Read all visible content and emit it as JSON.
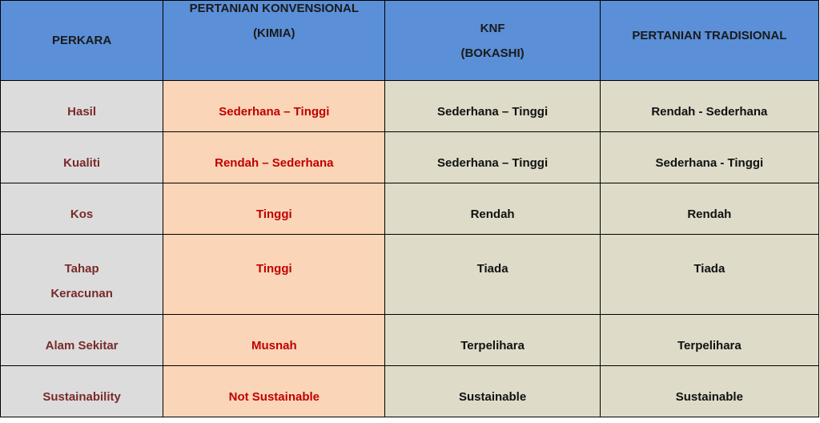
{
  "headers": {
    "perkara": "PERKARA",
    "konv_line1": "PERTANIAN KONVENSIONAL",
    "konv_line2": "(KIMIA)",
    "knf_line1": "KNF",
    "knf_line2": "(BOKASHI)",
    "trad": "PERTANIAN TRADISIONAL"
  },
  "rows": [
    {
      "perkara": "Hasil",
      "konv": "Sederhana – Tinggi",
      "knf": "Sederhana – Tinggi",
      "trad": "Rendah - Sederhana"
    },
    {
      "perkara": "Kualiti",
      "konv": "Rendah – Sederhana",
      "knf": "Sederhana – Tinggi",
      "trad": "Sederhana - Tinggi"
    },
    {
      "perkara": "Kos",
      "konv": "Tinggi",
      "knf": "Rendah",
      "trad": "Rendah"
    },
    {
      "perkara_line1": "Tahap",
      "perkara_line2": "Keracunan",
      "konv": "Tinggi",
      "knf": "Tiada",
      "trad": "Tiada"
    },
    {
      "perkara": "Alam Sekitar",
      "konv": "Musnah",
      "knf": "Terpelihara",
      "trad": "Terpelihara"
    },
    {
      "perkara": "Sustainability",
      "konv": "Not Sustainable",
      "knf": "Sustainable",
      "trad": "Sustainable"
    }
  ]
}
